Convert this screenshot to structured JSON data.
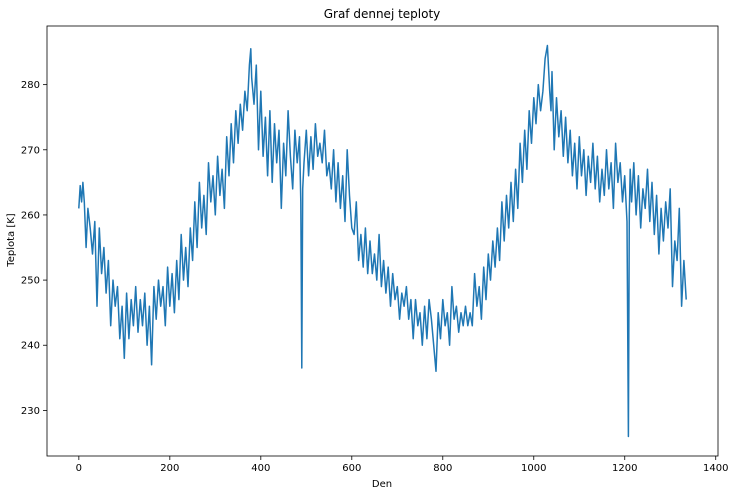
{
  "chart_data": {
    "type": "line",
    "title": "Graf dennej teploty",
    "xlabel": "Den",
    "ylabel": "Teplota [K]",
    "xlim": [
      -70,
      1405
    ],
    "ylim": [
      223,
      289
    ],
    "xticks": [
      0,
      200,
      400,
      600,
      800,
      1000,
      1200,
      1400
    ],
    "yticks": [
      230,
      240,
      250,
      260,
      270,
      280
    ],
    "grid": false,
    "color": "#1f77b4",
    "series": [
      {
        "x": [
          0,
          3,
          6,
          9,
          12,
          16,
          20,
          25,
          30,
          35,
          40,
          45,
          50,
          55,
          60,
          65,
          70,
          75,
          80,
          85,
          90,
          95,
          100,
          105,
          110,
          115,
          120,
          125,
          130,
          135,
          140,
          145,
          150,
          155,
          160,
          165,
          170,
          175,
          180,
          185,
          190,
          195,
          200,
          205,
          210,
          215,
          220,
          225,
          230,
          235,
          240,
          245,
          250,
          255,
          260,
          265,
          270,
          275,
          280,
          285,
          290,
          295,
          300,
          305,
          310,
          315,
          320,
          325,
          330,
          335,
          340,
          345,
          350,
          355,
          360,
          365,
          370,
          375,
          378,
          380,
          385,
          390,
          395,
          400,
          405,
          410,
          415,
          420,
          425,
          430,
          435,
          440,
          445,
          450,
          455,
          460,
          465,
          470,
          475,
          480,
          485,
          488,
          490,
          492,
          495,
          500,
          505,
          510,
          515,
          520,
          525,
          530,
          535,
          540,
          545,
          550,
          555,
          560,
          565,
          570,
          575,
          580,
          585,
          590,
          595,
          600,
          605,
          610,
          615,
          620,
          625,
          630,
          635,
          640,
          645,
          650,
          655,
          660,
          665,
          670,
          675,
          680,
          685,
          690,
          695,
          700,
          705,
          710,
          715,
          720,
          725,
          730,
          735,
          740,
          745,
          750,
          755,
          760,
          765,
          770,
          775,
          780,
          785,
          790,
          795,
          800,
          805,
          810,
          815,
          820,
          825,
          830,
          835,
          840,
          845,
          850,
          855,
          860,
          865,
          870,
          875,
          880,
          885,
          890,
          895,
          900,
          905,
          910,
          915,
          920,
          925,
          930,
          935,
          940,
          945,
          950,
          955,
          960,
          965,
          970,
          975,
          980,
          985,
          990,
          995,
          1000,
          1005,
          1010,
          1015,
          1020,
          1025,
          1030,
          1035,
          1038,
          1040,
          1045,
          1050,
          1055,
          1060,
          1065,
          1070,
          1075,
          1080,
          1085,
          1090,
          1095,
          1100,
          1105,
          1110,
          1115,
          1120,
          1125,
          1130,
          1135,
          1140,
          1145,
          1150,
          1155,
          1160,
          1165,
          1170,
          1175,
          1180,
          1185,
          1190,
          1195,
          1200,
          1205,
          1208,
          1210,
          1212,
          1215,
          1220,
          1225,
          1230,
          1235,
          1240,
          1245,
          1250,
          1255,
          1260,
          1265,
          1270,
          1275,
          1280,
          1285,
          1290,
          1295,
          1300,
          1305,
          1310,
          1315,
          1320,
          1325,
          1330,
          1335
        ],
        "y": [
          261,
          264.5,
          262,
          265,
          262,
          255,
          261,
          258,
          254,
          259,
          246,
          258,
          251,
          255,
          248,
          253,
          243,
          250,
          246,
          249,
          241,
          246,
          238,
          248,
          241,
          247,
          243,
          249,
          242,
          247,
          243,
          248,
          240,
          246,
          237,
          249,
          244,
          250,
          246,
          249,
          243,
          252,
          246,
          251,
          245,
          253,
          247,
          257,
          250,
          255,
          249,
          258,
          253,
          262,
          255,
          265,
          258,
          263,
          257,
          268,
          262,
          266,
          260,
          269,
          263,
          267,
          261,
          272,
          266,
          274,
          268,
          276,
          271,
          277,
          273,
          279,
          276,
          283,
          285.5,
          281,
          277,
          283,
          270,
          279,
          269,
          275,
          266,
          276,
          265,
          274,
          268,
          273,
          261,
          271,
          266,
          276,
          269,
          264,
          273,
          268,
          272,
          262,
          236.5,
          264,
          268,
          273,
          266,
          272,
          267,
          274,
          269,
          271,
          268,
          273,
          266,
          268,
          264,
          270,
          262,
          268,
          261,
          266,
          259,
          270,
          263,
          258,
          257,
          262,
          253,
          257,
          252,
          258,
          251,
          256,
          251,
          254,
          250,
          257,
          249,
          253,
          248,
          252,
          246,
          251,
          247,
          249,
          244,
          248,
          246,
          249,
          244,
          247,
          241,
          247,
          243,
          245,
          240,
          246,
          241,
          247,
          244,
          240,
          236,
          245,
          241,
          247,
          243,
          245,
          240,
          249,
          244,
          246,
          242,
          245,
          243,
          246,
          243,
          245,
          243,
          251,
          246,
          249,
          244,
          252,
          247,
          254,
          250,
          256,
          252,
          258,
          253,
          262,
          256,
          263,
          258,
          265,
          259,
          267,
          261,
          271,
          265,
          273,
          267,
          276,
          271,
          278,
          274,
          280,
          276,
          279,
          284,
          286,
          279,
          276,
          282,
          270,
          278,
          272,
          276,
          269,
          275,
          268,
          273,
          266,
          271,
          264,
          272,
          266,
          270,
          263,
          269,
          265,
          271,
          264,
          269,
          262,
          267,
          263,
          270,
          264,
          268,
          261,
          271,
          265,
          268,
          262,
          266,
          259,
          226,
          260,
          267,
          262,
          268,
          260,
          266,
          258,
          264,
          261,
          267,
          259,
          265,
          257,
          263,
          254,
          261,
          256,
          262,
          258,
          264,
          249,
          256,
          253,
          261,
          246,
          253,
          247
        ]
      }
    ]
  }
}
